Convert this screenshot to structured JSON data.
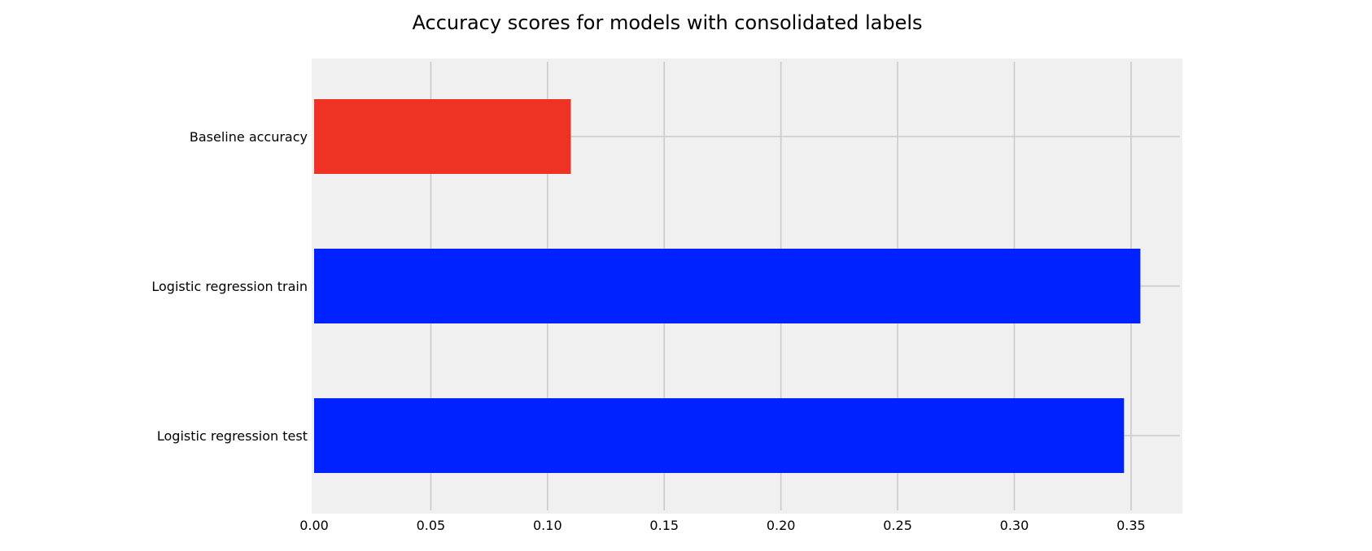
{
  "chart_data": {
    "type": "bar",
    "orientation": "horizontal",
    "title": "Accuracy scores for models with consolidated labels",
    "xlabel": "",
    "ylabel": "",
    "categories": [
      "Baseline accuracy",
      "Logistic regression train",
      "Logistic regression test"
    ],
    "values": [
      0.11,
      0.354,
      0.347
    ],
    "colors": [
      "#ee3224",
      "#0022ff",
      "#0022ff"
    ],
    "xlim": [
      0,
      0.372
    ],
    "xticks": [
      0.0,
      0.05,
      0.1,
      0.15,
      0.2,
      0.25,
      0.3,
      0.35
    ],
    "xtick_labels": [
      "0.00",
      "0.05",
      "0.10",
      "0.15",
      "0.20",
      "0.25",
      "0.30",
      "0.35"
    ],
    "grid": true,
    "background_color": "#f0f0f0",
    "grid_color": "#cbcbcb"
  }
}
